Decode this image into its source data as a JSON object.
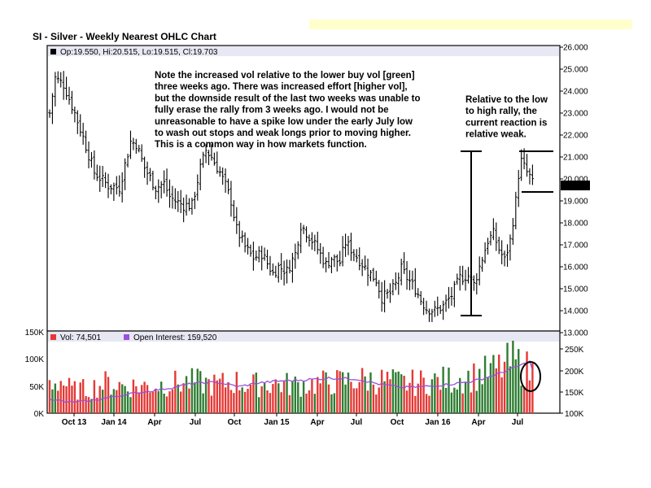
{
  "chart_data": {
    "type": "ohlc",
    "title": "SI - Silver - Weekly Nearest OHLC Chart",
    "price_panel": {
      "legend": "Op:19.550, Hi:20.515, Lo:19.515, Cl:19.703",
      "ylim": [
        13.5,
        26.0
      ],
      "y_ticks": [
        "26.000",
        "25.000",
        "24.000",
        "23.000",
        "22.000",
        "21.000",
        "20.000",
        "19.000",
        "18.000",
        "17.000",
        "16.000",
        "15.000",
        "14.000",
        "13.000"
      ],
      "last_price_label": "19.703",
      "keypoints": [
        [
          0,
          23.0
        ],
        [
          2,
          24.6
        ],
        [
          5,
          24.3
        ],
        [
          9,
          23.0
        ],
        [
          12,
          21.9
        ],
        [
          16,
          20.3
        ],
        [
          21,
          19.7
        ],
        [
          25,
          19.6
        ],
        [
          29,
          21.7
        ],
        [
          31,
          21.6
        ],
        [
          34,
          20.5
        ],
        [
          38,
          19.6
        ],
        [
          41,
          19.8
        ],
        [
          43,
          19.2
        ],
        [
          45,
          19.0
        ],
        [
          48,
          18.8
        ],
        [
          51,
          18.8
        ],
        [
          54,
          20.5
        ],
        [
          56,
          21.3
        ],
        [
          58,
          21.0
        ],
        [
          61,
          20.3
        ],
        [
          63,
          19.7
        ],
        [
          65,
          19.0
        ],
        [
          67,
          17.7
        ],
        [
          70,
          16.9
        ],
        [
          73,
          16.4
        ],
        [
          76,
          16.6
        ],
        [
          80,
          15.7
        ],
        [
          82,
          16.0
        ],
        [
          85,
          15.8
        ],
        [
          88,
          16.6
        ],
        [
          90,
          17.9
        ],
        [
          93,
          17.4
        ],
        [
          96,
          16.8
        ],
        [
          99,
          16.1
        ],
        [
          101,
          16.4
        ],
        [
          104,
          16.2
        ],
        [
          106,
          17.1
        ],
        [
          108,
          16.8
        ],
        [
          111,
          16.3
        ],
        [
          114,
          15.8
        ],
        [
          117,
          15.4
        ],
        [
          119,
          14.6
        ],
        [
          122,
          14.8
        ],
        [
          124,
          15.2
        ],
        [
          126,
          15.9
        ],
        [
          128,
          15.5
        ],
        [
          131,
          15.0
        ],
        [
          133,
          14.5
        ],
        [
          135,
          14.1
        ],
        [
          138,
          14.0
        ],
        [
          141,
          14.2
        ],
        [
          144,
          14.7
        ],
        [
          147,
          15.5
        ],
        [
          150,
          15.6
        ],
        [
          152,
          15.2
        ],
        [
          155,
          16.4
        ],
        [
          157,
          17.2
        ],
        [
          159,
          17.5
        ],
        [
          161,
          16.8
        ],
        [
          163,
          16.3
        ],
        [
          165,
          17.2
        ],
        [
          167,
          19.0
        ],
        [
          168,
          20.2
        ],
        [
          169,
          20.8
        ],
        [
          171,
          20.3
        ],
        [
          172,
          20.1
        ],
        [
          173,
          19.8
        ]
      ]
    },
    "volume_panel": {
      "legend_vol": "Vol: 74,501",
      "legend_oi": "Open Interest: 159,520",
      "left_ticks": [
        "150K",
        "100K",
        "50K",
        "0K"
      ],
      "right_ticks": [
        "250K",
        "200K",
        "150K",
        "100K"
      ],
      "vol_keypoints": [
        [
          0,
          55
        ],
        [
          4,
          60
        ],
        [
          8,
          42
        ],
        [
          14,
          45
        ],
        [
          20,
          55
        ],
        [
          28,
          50
        ],
        [
          36,
          50
        ],
        [
          44,
          55
        ],
        [
          52,
          58
        ],
        [
          60,
          52
        ],
        [
          66,
          58
        ],
        [
          72,
          52
        ],
        [
          80,
          55
        ],
        [
          88,
          52
        ],
        [
          96,
          55
        ],
        [
          104,
          58
        ],
        [
          112,
          62
        ],
        [
          120,
          60
        ],
        [
          128,
          55
        ],
        [
          136,
          58
        ],
        [
          144,
          62
        ],
        [
          152,
          68
        ],
        [
          160,
          80
        ],
        [
          166,
          95
        ],
        [
          170,
          85
        ],
        [
          173,
          75
        ]
      ],
      "oi_keypoints": [
        [
          0,
          135
        ],
        [
          6,
          125
        ],
        [
          14,
          128
        ],
        [
          24,
          140
        ],
        [
          34,
          150
        ],
        [
          44,
          160
        ],
        [
          52,
          170
        ],
        [
          60,
          172
        ],
        [
          68,
          162
        ],
        [
          74,
          170
        ],
        [
          82,
          175
        ],
        [
          92,
          178
        ],
        [
          100,
          182
        ],
        [
          110,
          180
        ],
        [
          118,
          168
        ],
        [
          126,
          160
        ],
        [
          134,
          162
        ],
        [
          144,
          168
        ],
        [
          152,
          175
        ],
        [
          160,
          190
        ],
        [
          166,
          205
        ],
        [
          172,
          220
        ],
        [
          173,
          200
        ]
      ]
    },
    "x_ticks": [
      "Oct 13",
      "Jan 14",
      "Apr",
      "Jul",
      "Oct",
      "Jan 15",
      "Apr",
      "Jul",
      "Oct",
      "Jan 16",
      "Apr",
      "Jul"
    ],
    "annotations": {
      "note_main": [
        "Note the increased vol relative to the lower buy vol [green]",
        "three weeks ago.  There was increased effort [higher vol],",
        "but the downside result of the last two weeks was unable to",
        "fully erase the rally from 3 weeks ago.  I would not be",
        "unreasonable to have a spike low under the early July low",
        "to wash out stops and weak longs prior to moving higher.",
        "This is a common way in how markets function."
      ],
      "note_right": [
        "Relative to the low",
        "to high rally, the",
        "current reaction is",
        "relative weak."
      ]
    },
    "colors": {
      "up_volume": "#2e7d32",
      "down_volume": "#e53935",
      "open_interest": "#9b4fe0",
      "price_bars": "#000000"
    }
  }
}
